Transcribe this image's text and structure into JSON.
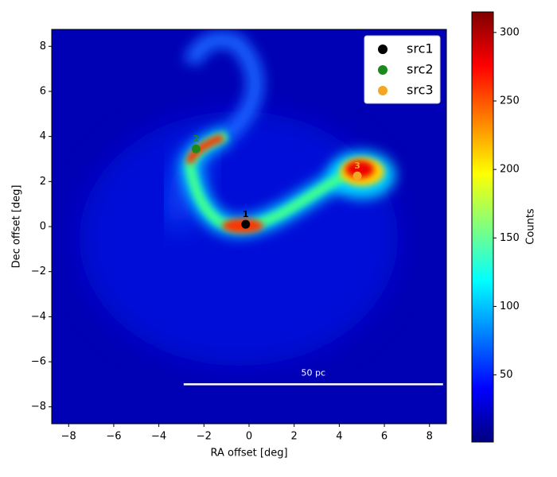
{
  "chart_data": {
    "type": "scatter",
    "x_label": "RA offset [deg]",
    "y_label": "Dec offset [deg]",
    "xlim": [
      -8.75,
      8.75
    ],
    "ylim": [
      -8.75,
      8.75
    ],
    "xticks": [
      {
        "value": -8,
        "label": "−8"
      },
      {
        "value": -6,
        "label": "−6"
      },
      {
        "value": -4,
        "label": "−4"
      },
      {
        "value": -2,
        "label": "−2"
      },
      0,
      2,
      4,
      6,
      8
    ],
    "yticks": [
      {
        "value": -8,
        "label": "−8"
      },
      {
        "value": -6,
        "label": "−6"
      },
      {
        "value": -4,
        "label": "−4"
      },
      {
        "value": -2,
        "label": "−2"
      },
      0,
      2,
      4,
      6,
      8
    ],
    "series": [
      {
        "name": "src1",
        "color": "#000000",
        "x": [
          -0.15
        ],
        "values": [
          0.1
        ],
        "point_labels": [
          "1"
        ]
      },
      {
        "name": "src2",
        "color": "#1a8a1a",
        "x": [
          -2.35
        ],
        "values": [
          3.45
        ],
        "point_labels": [
          "2"
        ]
      },
      {
        "name": "src3",
        "color": "#f5a623",
        "x": [
          4.8
        ],
        "values": [
          2.25
        ],
        "point_labels": [
          "3"
        ]
      }
    ],
    "legend": "upper right",
    "colorbar": {
      "label": "Counts",
      "colormap": "jet",
      "clim": [
        1,
        315
      ],
      "ticks": [
        50,
        100,
        150,
        200,
        250,
        300
      ]
    },
    "scalebar": {
      "label": "50 pc",
      "x": [
        -2.9,
        8.6
      ],
      "y": -7,
      "color": "#ffffff"
    }
  }
}
